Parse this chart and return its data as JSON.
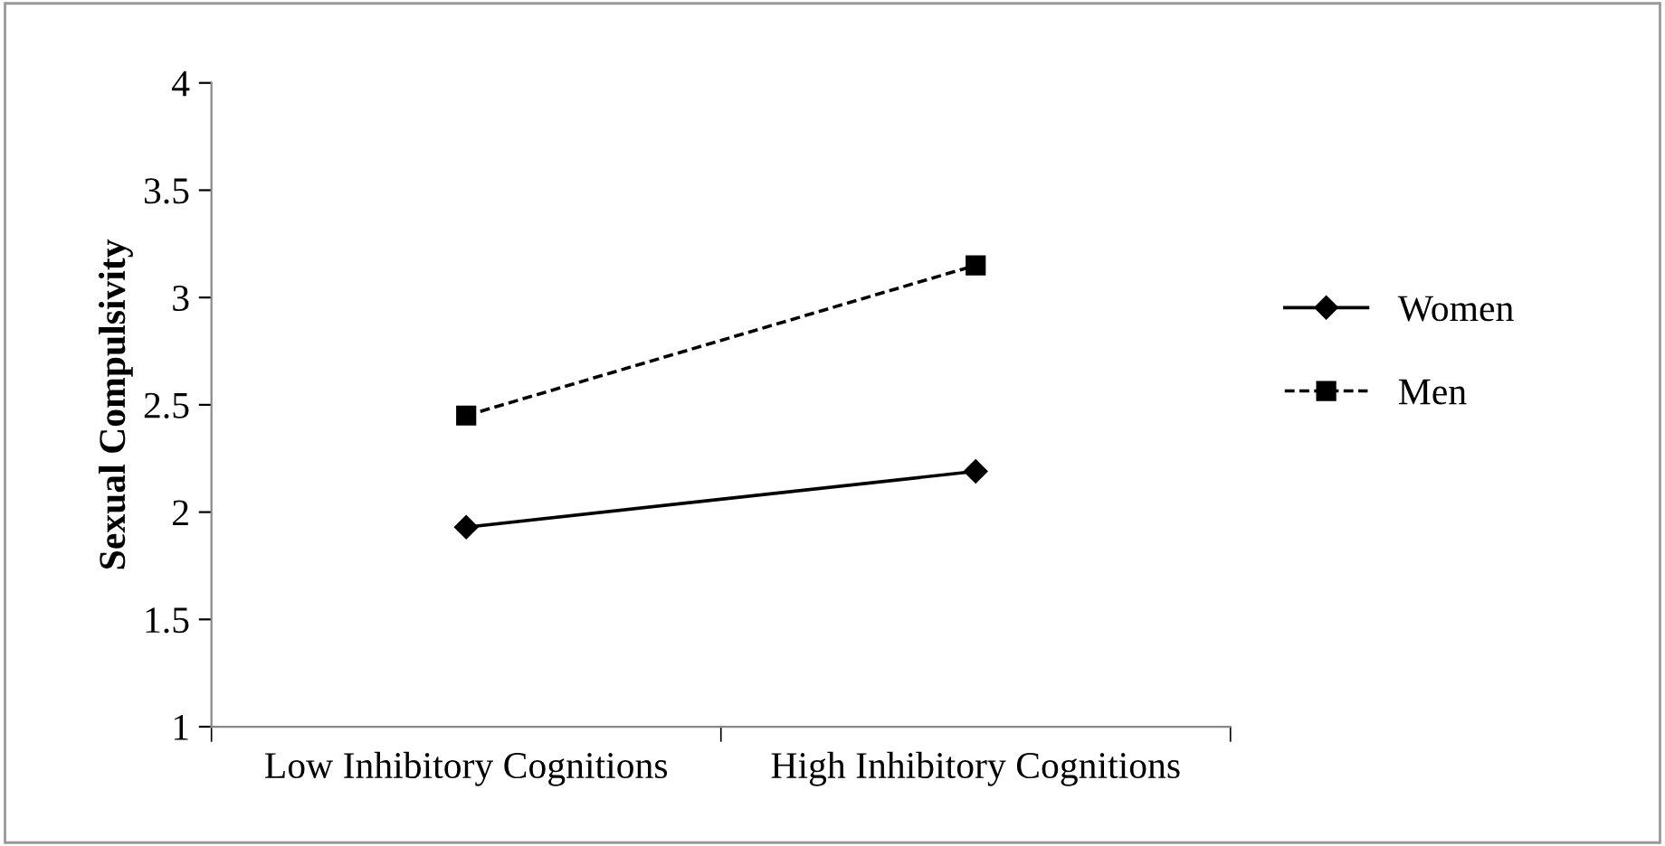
{
  "chart_data": {
    "type": "line",
    "ylabel": "Sexual Compulsivity",
    "categories": [
      "Low Inhibitory Cognitions",
      "High Inhibitory Cognitions"
    ],
    "series": [
      {
        "name": "Women",
        "color": "#000000",
        "values": [
          1.93,
          2.19
        ],
        "marker": "diamond",
        "line_style": "solid"
      },
      {
        "name": "Men",
        "color": "#000000",
        "values": [
          2.45,
          3.15
        ],
        "marker": "square",
        "line_style": "dashed"
      }
    ],
    "ylim": [
      1,
      4
    ],
    "yticks": [
      1,
      1.5,
      2,
      2.5,
      3,
      3.5,
      4
    ],
    "grid": false,
    "legend": "right"
  }
}
